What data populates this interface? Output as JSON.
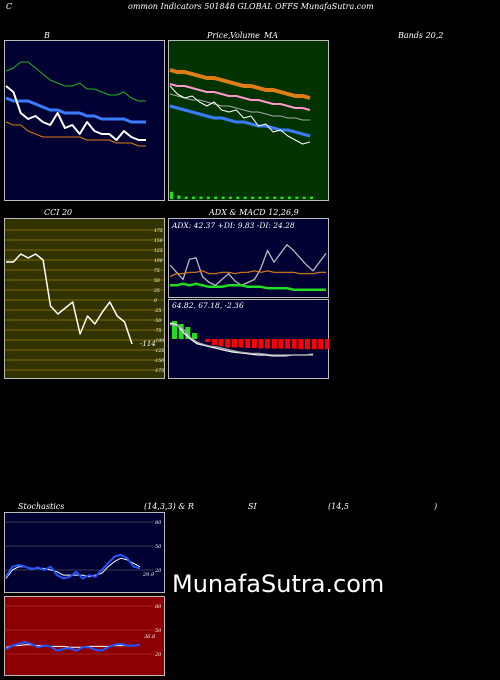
{
  "header": {
    "c": "C",
    "title": "ommon  Indicators 501848  GLOBAL OFFS MunafaSutra.com"
  },
  "labels": {
    "b": "B",
    "price": "Price,",
    "volume": "Volume",
    "ma": "MA",
    "bands": "Bands 20,2",
    "cci": "CCI 20",
    "adx_macd": "ADX  & MACD 12,26,9",
    "stoch": "Stochastics",
    "stoch_params": "(14,3,3) & R",
    "si": "SI",
    "rsi_params": "(14,5",
    "rsi_close": ")"
  },
  "colors": {
    "green_panel": "#003300",
    "olive_panel": "#333300",
    "navy_panel": "#000033",
    "red_panel": "#8b0000",
    "ema_green": "#1fb71f",
    "ema_orange": "#e07c16",
    "ema_blue": "#3a7bff",
    "price_white": "#ffffff",
    "adx_orange": "#e07c16",
    "adx_green": "#22dd22",
    "macd_red": "#ff0000",
    "stoch_blue": "#2255ff"
  },
  "watermark": "MunafaSutra.com",
  "chart_data": [
    {
      "type": "line",
      "name": "bollinger",
      "series": [
        {
          "values": [
            3.3,
            3.4,
            3.6,
            3.6,
            3.4,
            3.2,
            3.0,
            2.9,
            2.8,
            2.8,
            2.9,
            2.7,
            2.7,
            2.6,
            2.5,
            2.5,
            2.6,
            2.4,
            2.3,
            2.3
          ]
        },
        {
          "values": [
            2.4,
            2.3,
            2.3,
            2.3,
            2.2,
            2.1,
            2.0,
            2.0,
            1.9,
            1.9,
            1.9,
            1.8,
            1.8,
            1.7,
            1.7,
            1.7,
            1.7,
            1.6,
            1.6,
            1.6
          ]
        },
        {
          "values": [
            1.6,
            1.5,
            1.5,
            1.3,
            1.2,
            1.1,
            1.1,
            1.1,
            1.1,
            1.1,
            1.1,
            1.0,
            1.0,
            1.0,
            1.0,
            0.9,
            0.9,
            0.9,
            0.8,
            0.8
          ]
        },
        {
          "values": [
            2.8,
            2.6,
            1.9,
            1.7,
            1.8,
            1.6,
            1.5,
            1.9,
            1.4,
            1.5,
            1.2,
            1.6,
            1.3,
            1.2,
            1.2,
            1.0,
            1.3,
            1.1,
            1.0,
            1.0
          ]
        }
      ]
    },
    {
      "type": "line",
      "name": "price_volume_ma",
      "series": [
        {
          "values": [
            5.0,
            4.9,
            4.9,
            4.8,
            4.7,
            4.6,
            4.6,
            4.5,
            4.4,
            4.3,
            4.2,
            4.2,
            4.1,
            4.0,
            4.0,
            3.9,
            3.8,
            3.7,
            3.7,
            3.6
          ]
        },
        {
          "values": [
            4.3,
            4.2,
            4.2,
            4.1,
            4.0,
            3.9,
            3.9,
            3.8,
            3.7,
            3.7,
            3.6,
            3.5,
            3.5,
            3.4,
            3.3,
            3.3,
            3.2,
            3.1,
            3.1,
            3.0
          ]
        },
        {
          "values": [
            3.8,
            3.7,
            3.6,
            3.5,
            3.5,
            3.4,
            3.3,
            3.2,
            3.2,
            3.1,
            3.0,
            2.9,
            2.9,
            2.8,
            2.7,
            2.7,
            2.6,
            2.6,
            2.5,
            2.5
          ]
        },
        {
          "values": [
            3.2,
            3.1,
            3.0,
            2.9,
            2.8,
            2.7,
            2.6,
            2.6,
            2.5,
            2.4,
            2.4,
            2.3,
            2.2,
            2.2,
            2.1,
            2.0,
            2.0,
            1.9,
            1.8,
            1.7
          ]
        },
        {
          "values": [
            4.2,
            3.8,
            3.6,
            3.7,
            3.4,
            3.2,
            3.4,
            3.0,
            2.9,
            3.0,
            2.6,
            2.7,
            2.2,
            2.3,
            1.9,
            2.0,
            1.7,
            1.5,
            1.3,
            1.4
          ]
        }
      ],
      "volume": [
        0.6,
        0.3,
        0.2,
        0.2,
        0.2,
        0.2,
        0.2,
        0.2,
        0.2,
        0.2,
        0.2,
        0.2,
        0.2,
        0.2,
        0.2,
        0.2,
        0.2,
        0.2,
        0.2,
        0.2
      ]
    },
    {
      "type": "line",
      "name": "cci",
      "ylim": [
        -175,
        175
      ],
      "ticks": [
        "175",
        "150",
        "125",
        "100",
        "75",
        "50",
        "25",
        "0",
        "-25",
        "-50",
        "-75",
        "-100",
        "-125",
        "-150",
        "-175"
      ],
      "values": [
        95,
        95,
        115,
        105,
        115,
        100,
        -15,
        -35,
        -20,
        -5,
        -85,
        -40,
        -60,
        -30,
        -5,
        -40,
        -55,
        -110
      ],
      "last_label": "-114"
    },
    {
      "type": "line",
      "name": "adx",
      "text": "ADX: 42.37  +DI: 9.83  -DI: 24.28",
      "series": [
        {
          "values": [
            20,
            15,
            10,
            24,
            25,
            12,
            8,
            6,
            10,
            14,
            9,
            6,
            8,
            10,
            18,
            30,
            22,
            28,
            34,
            30,
            25,
            20,
            16,
            22,
            28
          ]
        },
        {
          "values": [
            12,
            14,
            14,
            15,
            15,
            16,
            14,
            14,
            15,
            15,
            14,
            15,
            15,
            16,
            15,
            16,
            15,
            15,
            15,
            15,
            14,
            14,
            14,
            15,
            15
          ]
        },
        {
          "values": [
            6,
            6,
            7,
            6,
            7,
            6,
            5,
            5,
            5,
            6,
            6,
            6,
            5,
            5,
            5,
            4,
            4,
            4,
            4,
            3,
            3,
            3,
            3,
            3,
            3
          ]
        }
      ]
    },
    {
      "type": "bar",
      "name": "macd",
      "text": "64.82,  67.18,  -2.36",
      "histogram": [
        3,
        2.5,
        2,
        1,
        0,
        -0.5,
        -1,
        -1.2,
        -1.4,
        -1.4,
        -1.4,
        -1.5,
        -1.5,
        -1.6,
        -1.6,
        -1.6,
        -1.6,
        -1.6,
        -1.6,
        -1.7,
        -1.7,
        -1.7,
        -1.7,
        -1.7
      ],
      "series": [
        {
          "values": [
            2,
            1.8,
            0.8,
            0,
            -0.6,
            -0.8,
            -1,
            -1.2,
            -1.4,
            -1.6,
            -1.7,
            -1.8,
            -1.9,
            -2,
            -2,
            -2.1,
            -2.1,
            -2.1,
            -2,
            -2,
            -2,
            -1.9
          ]
        },
        {
          "values": [
            1.8,
            1.7,
            1.2,
            0.2,
            -0.4,
            -0.7,
            -0.9,
            -1.0,
            -1.2,
            -1.4,
            -1.6,
            -1.7,
            -1.8,
            -1.8,
            -1.9,
            -2,
            -2,
            -2,
            -2,
            -2,
            -2,
            -2
          ]
        }
      ]
    },
    {
      "type": "line",
      "name": "stochastics",
      "ticks": [
        "80",
        "50",
        "20"
      ],
      "last_label": "29.9",
      "series": [
        {
          "values": [
            18,
            30,
            32,
            30,
            27,
            29,
            26,
            30,
            20,
            16,
            18,
            24,
            16,
            20,
            18,
            26,
            34,
            42,
            44,
            40,
            30,
            28
          ]
        },
        {
          "values": [
            16,
            26,
            30,
            30,
            28,
            28,
            28,
            26,
            24,
            20,
            20,
            20,
            20,
            18,
            20,
            22,
            30,
            36,
            40,
            38,
            34,
            30
          ]
        }
      ]
    },
    {
      "type": "line",
      "name": "rsi",
      "ticks": [
        "80",
        "50",
        "20"
      ],
      "last_label": "36.8",
      "series": [
        {
          "values": [
            34,
            36,
            36,
            37,
            37,
            36,
            36,
            35,
            35,
            35,
            34,
            34,
            34,
            35,
            35,
            35,
            35,
            36,
            36,
            36,
            36,
            37
          ]
        },
        {
          "values": [
            32,
            36,
            38,
            40,
            38,
            34,
            36,
            35,
            30,
            32,
            33,
            30,
            34,
            34,
            31,
            30,
            34,
            37,
            38,
            36,
            36,
            37
          ]
        }
      ]
    }
  ]
}
